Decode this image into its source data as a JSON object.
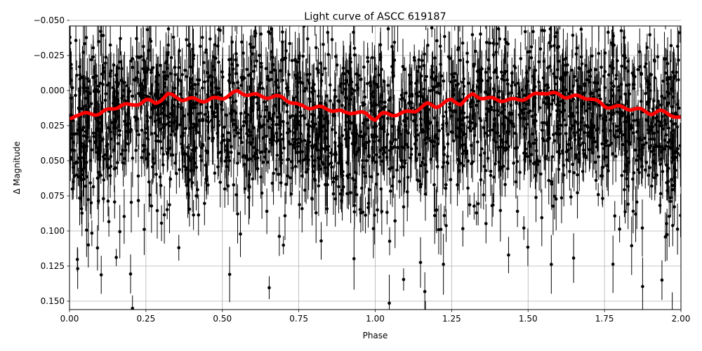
{
  "chart_data": {
    "type": "scatter",
    "title": "Light curve of ASCC 619187",
    "xlabel": "Phase",
    "ylabel": "Δ Magnitude",
    "xlim": [
      0.0,
      2.0
    ],
    "ylim": [
      0.156,
      -0.046
    ],
    "y_inverted": true,
    "grid": true,
    "x_ticks": [
      "0.00",
      "0.25",
      "0.50",
      "0.75",
      "1.00",
      "1.25",
      "1.50",
      "1.75",
      "2.00"
    ],
    "y_ticks": [
      "−0.050",
      "−0.025",
      "0.000",
      "0.025",
      "0.050",
      "0.075",
      "0.100",
      "0.125",
      "0.150"
    ],
    "colors": {
      "points": "#000000",
      "model": "#ff0000",
      "grid": "#b0b0b0"
    },
    "series": [
      {
        "kind": "observations",
        "style": "black dots with vertical error bars",
        "center": 0.022,
        "spread_1sigma": 0.035,
        "typical_error": 0.012,
        "description_values": "dense cloud of measurements over phase 0–2, mostly between -0.02 and 0.07"
      },
      {
        "kind": "binned-model",
        "style": "thick red line",
        "x": [
          0.0,
          0.02,
          0.05,
          0.1,
          0.13,
          0.17,
          0.2,
          0.25,
          0.28,
          0.32,
          0.37,
          0.45,
          0.5,
          0.55,
          0.62,
          0.7,
          0.75,
          0.8,
          0.85,
          0.9,
          0.93,
          0.97,
          1.0,
          1.02,
          1.05,
          1.1,
          1.13,
          1.17,
          1.2,
          1.25,
          1.28,
          1.32,
          1.37,
          1.45,
          1.5,
          1.55,
          1.62,
          1.7,
          1.75,
          1.8,
          1.85,
          1.9,
          1.93,
          1.97,
          2.0
        ],
        "y": [
          0.02,
          0.017,
          0.017,
          0.016,
          0.014,
          0.01,
          0.011,
          0.007,
          0.009,
          0.003,
          0.006,
          0.007,
          0.005,
          0.001,
          0.004,
          0.005,
          0.011,
          0.012,
          0.013,
          0.016,
          0.015,
          0.017,
          0.02,
          0.017,
          0.017,
          0.016,
          0.014,
          0.01,
          0.011,
          0.007,
          0.009,
          0.003,
          0.006,
          0.007,
          0.005,
          0.001,
          0.004,
          0.005,
          0.011,
          0.012,
          0.013,
          0.016,
          0.015,
          0.017,
          0.02
        ]
      }
    ]
  }
}
